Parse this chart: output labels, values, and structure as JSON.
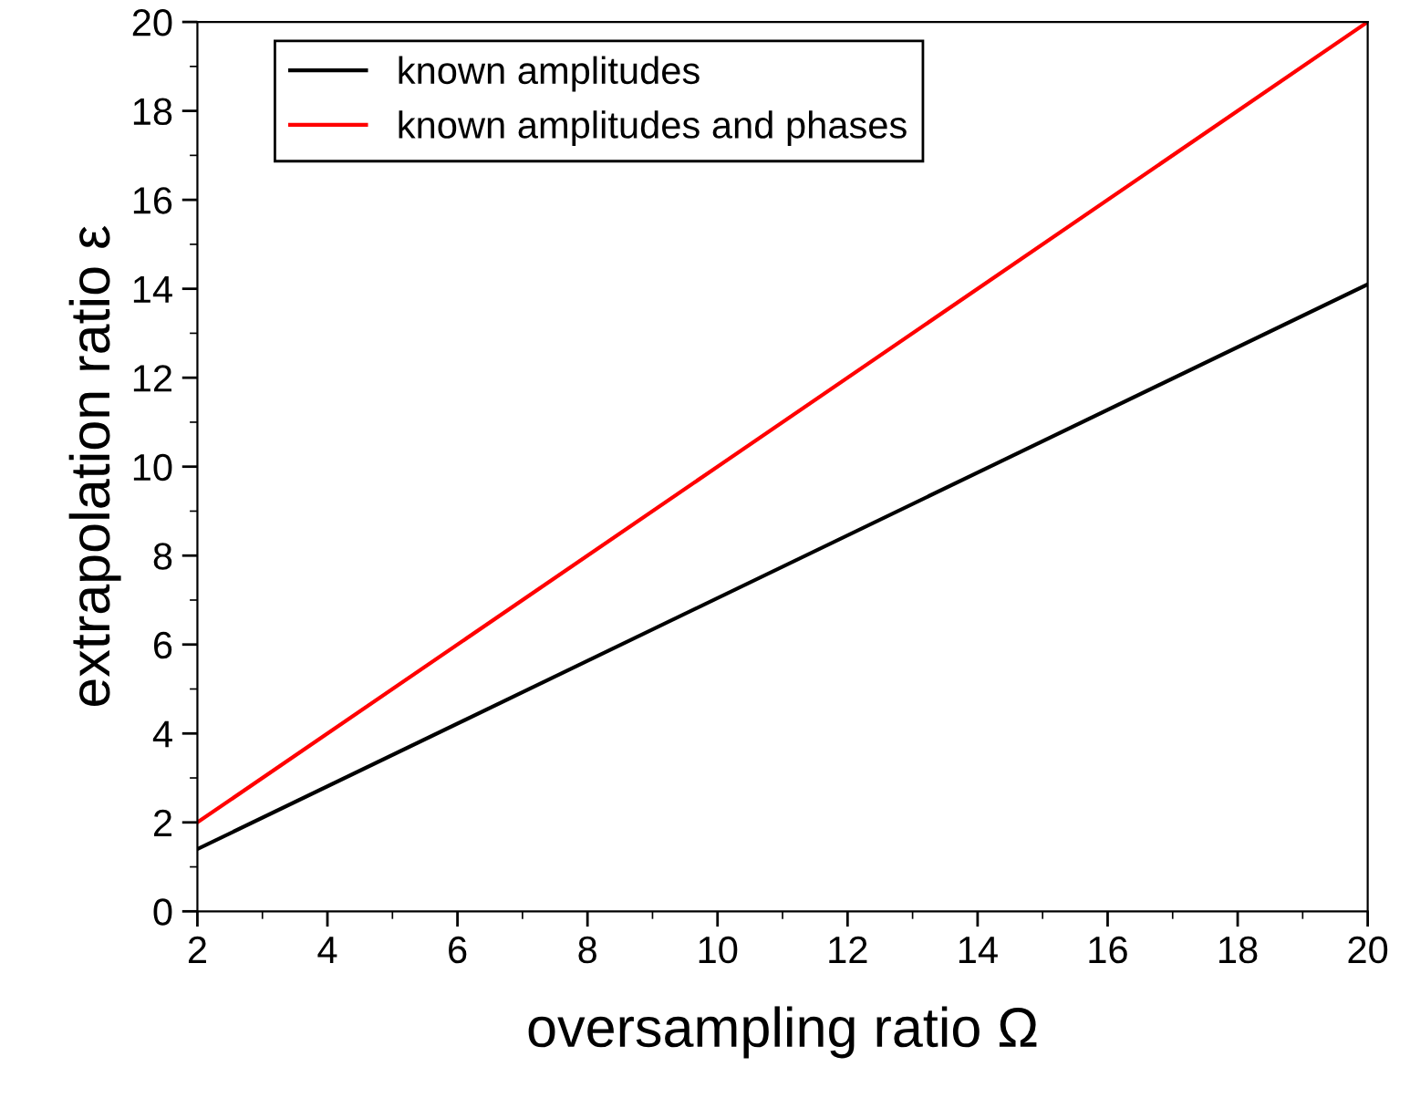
{
  "chart_data": {
    "type": "line",
    "xlabel": "oversampling ratio Ω",
    "ylabel": "extrapolation ratio ε",
    "x": [
      2,
      20
    ],
    "series": [
      {
        "name": "known amplitudes",
        "color": "#000000",
        "values": [
          1.4,
          14.1
        ]
      },
      {
        "name": "known amplitudes and phases",
        "color": "#ff0000",
        "values": [
          2,
          20
        ]
      }
    ],
    "xlim": [
      2,
      20
    ],
    "ylim": [
      0,
      20
    ],
    "xticks": [
      2,
      4,
      6,
      8,
      10,
      12,
      14,
      16,
      18,
      20
    ],
    "yticks": [
      0,
      2,
      4,
      6,
      8,
      10,
      12,
      14,
      16,
      18,
      20
    ],
    "grid": false,
    "legend": "top left",
    "marker": "none",
    "line_style": "solid"
  }
}
